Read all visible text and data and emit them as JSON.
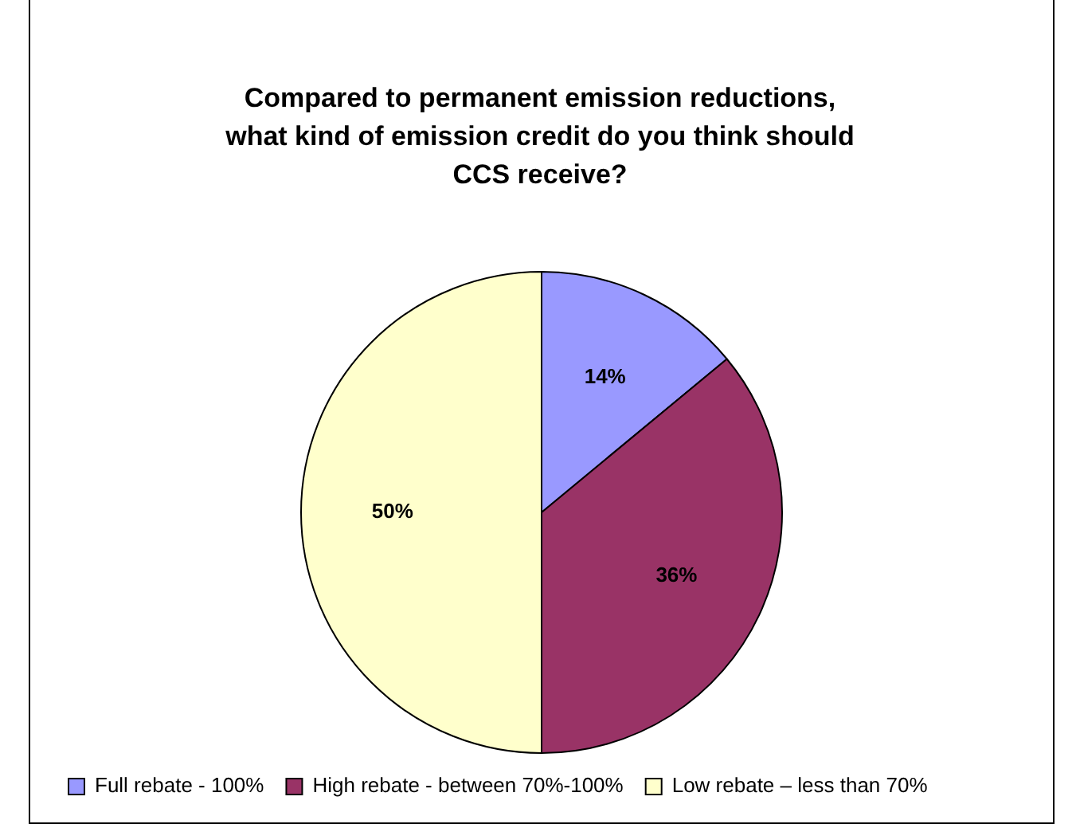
{
  "chart_data": {
    "type": "pie",
    "title": "Compared to permanent emission reductions, what kind of emission credit do you think should CCS receive?",
    "categories": [
      "Full rebate - 100%",
      "High rebate - between 70%-100%",
      "Low rebate – less than 70%"
    ],
    "values": [
      14,
      36,
      50
    ],
    "colors": [
      "#9999ff",
      "#993366",
      "#ffffcc"
    ],
    "value_labels": [
      "14%",
      "36%",
      "50%"
    ],
    "legend": "bottom"
  }
}
